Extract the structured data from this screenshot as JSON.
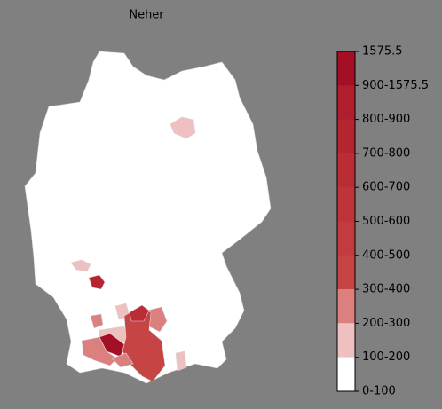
{
  "map": {
    "title": "Neher",
    "legend": {
      "labels": [
        "1575.5",
        "900-1575.5",
        "800-900",
        "700-800",
        "600-700",
        "500-600",
        "400-500",
        "300-400",
        "200-300",
        "100-200",
        "0-100"
      ],
      "colors": [
        "#a50f25",
        "#b01d2c",
        "#b52530",
        "#ba2d35",
        "#be3439",
        "#c23b3e",
        "#c64443",
        "#dc7f7f",
        "#efc0c0",
        "#ffffff"
      ]
    }
  }
}
